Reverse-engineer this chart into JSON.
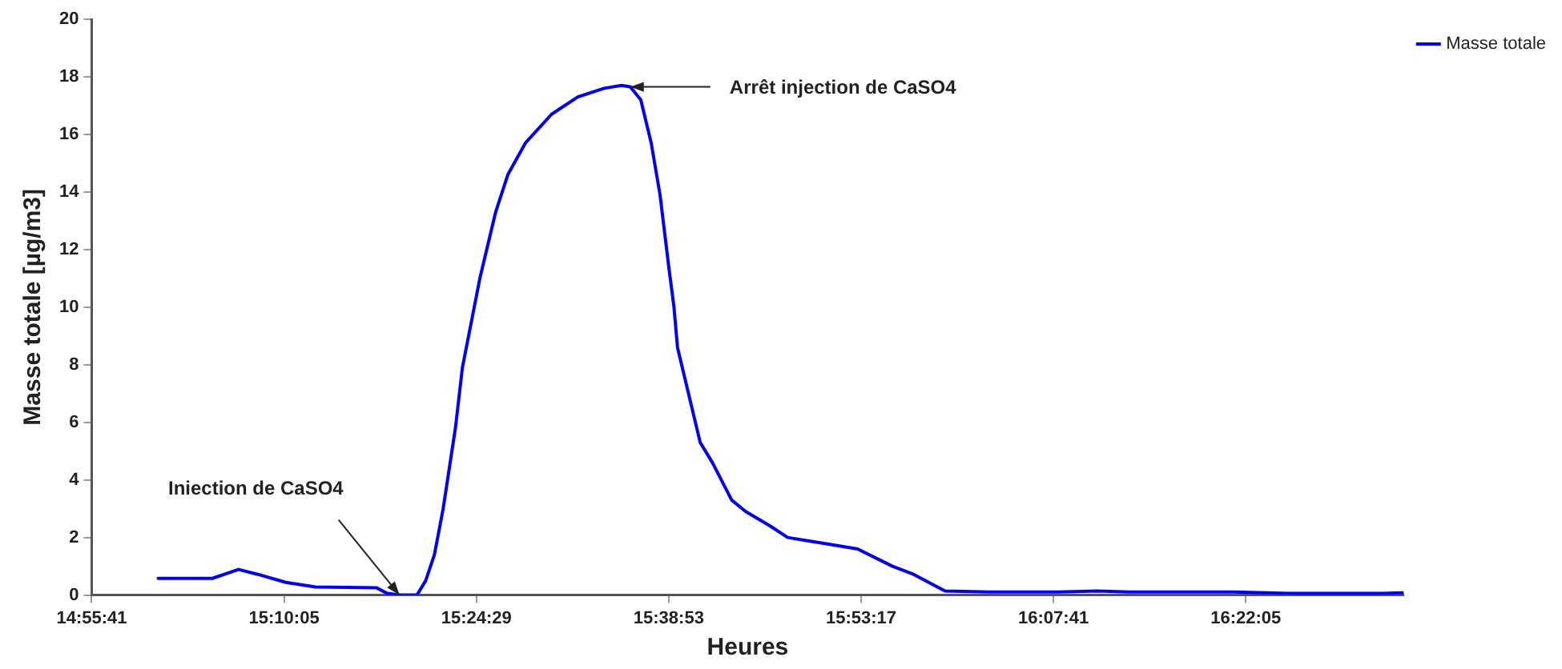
{
  "chart_data": {
    "type": "line",
    "xlabel": "Heures",
    "ylabel": "Masse totale [µg/m3]",
    "x": [
      15.011,
      15.0786,
      15.1113,
      15.1353,
      15.1702,
      15.2073,
      15.2837,
      15.2968,
      15.3121,
      15.3339,
      15.3448,
      15.3557,
      15.3666,
      15.3819,
      15.3906,
      15.4124,
      15.4321,
      15.4473,
      15.4692,
      15.5019,
      15.5346,
      15.5673,
      15.5892,
      15.6001,
      15.6132,
      15.6262,
      15.6372,
      15.6481,
      15.6546,
      15.659,
      15.6873,
      15.7026,
      15.7266,
      15.7441,
      15.7746,
      15.7964,
      15.8401,
      15.8837,
      15.9273,
      15.9535,
      15.9928,
      16.0473,
      16.1346,
      16.1826,
      16.2219,
      16.3528,
      16.4226,
      16.5382,
      16.5644
    ],
    "series": [
      {
        "name": "Masse totale",
        "color": "#0000ff",
        "values": [
          0.58,
          0.58,
          0.89,
          0.72,
          0.44,
          0.28,
          0.25,
          0.06,
          0,
          0,
          0.5,
          1.4,
          3.0,
          5.8,
          7.9,
          11,
          13.3,
          14.6,
          15.7,
          16.7,
          17.3,
          17.6,
          17.7,
          17.65,
          17.2,
          15.7,
          13.9,
          11.4,
          10.0,
          8.6,
          5.3,
          4.6,
          3.3,
          2.9,
          2.4,
          2.0,
          1.8,
          1.6,
          1.0,
          0.72,
          0.14,
          0.11,
          0.11,
          0.14,
          0.11,
          0.11,
          0.06,
          0.06,
          0.08
        ]
      }
    ],
    "xlim": [
      14.92806,
      16.565
    ],
    "xticks": [
      {
        "value": 14.92806,
        "label": "14:55:41"
      },
      {
        "value": 15.16806,
        "label": "15:10:05"
      },
      {
        "value": 15.40806,
        "label": "15:24:29"
      },
      {
        "value": 15.64806,
        "label": "15:38:53"
      },
      {
        "value": 15.88806,
        "label": "15:53:17"
      },
      {
        "value": 16.12806,
        "label": "16:07:41"
      },
      {
        "value": 16.36806,
        "label": "16:22:05"
      }
    ],
    "ylim": [
      0,
      20
    ],
    "yticks": [
      0,
      2,
      4,
      6,
      8,
      10,
      12,
      14,
      16,
      18,
      20
    ],
    "annotations": [
      {
        "text": "Iniection de CaSO4",
        "x": 15.3121,
        "y": 0
      },
      {
        "text": "Arrêt injection de CaSO4",
        "x": 15.6001,
        "y": 17.65
      }
    ],
    "grid": false,
    "legend": "top right",
    "marker": "none",
    "line_style": "solid"
  }
}
